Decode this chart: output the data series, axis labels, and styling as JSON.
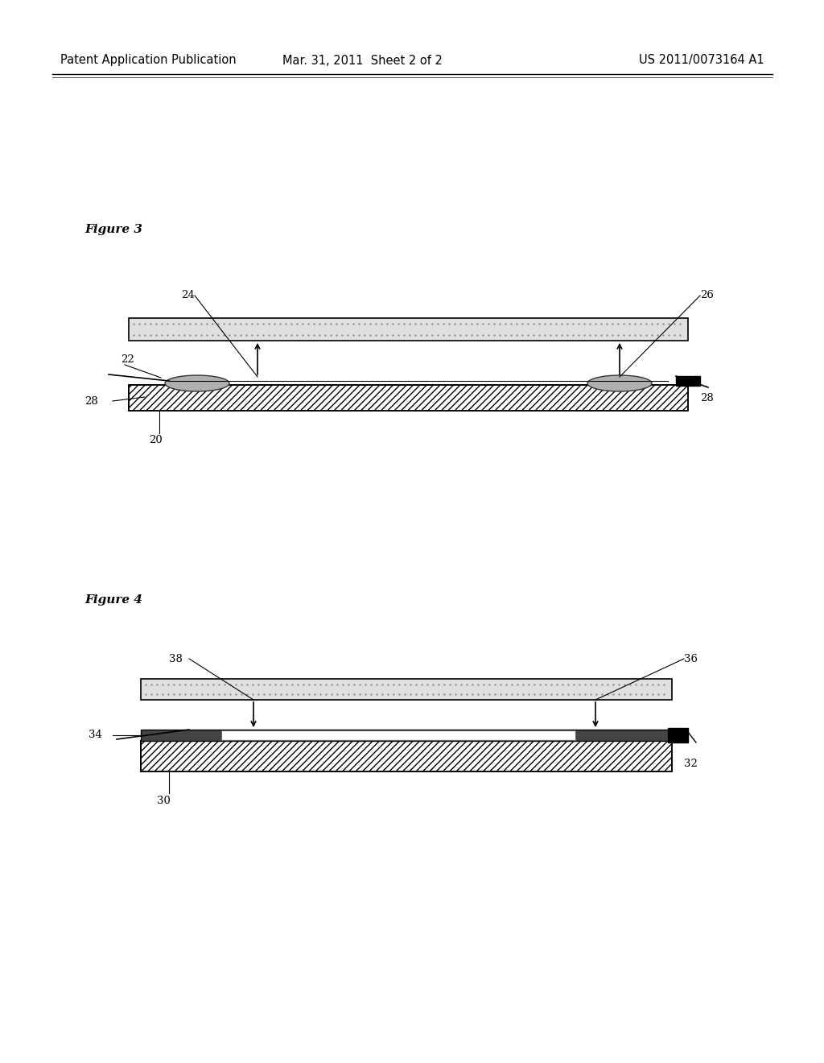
{
  "bg_color": "#ffffff",
  "header_left": "Patent Application Publication",
  "header_mid": "Mar. 31, 2011  Sheet 2 of 2",
  "header_right": "US 2011/0073164 A1",
  "header_fontsize": 10.5,
  "fig3_label": "Figure 3",
  "fig4_label": "Figure 4",
  "label_fontsize": 11,
  "annot_fontsize": 9.5
}
